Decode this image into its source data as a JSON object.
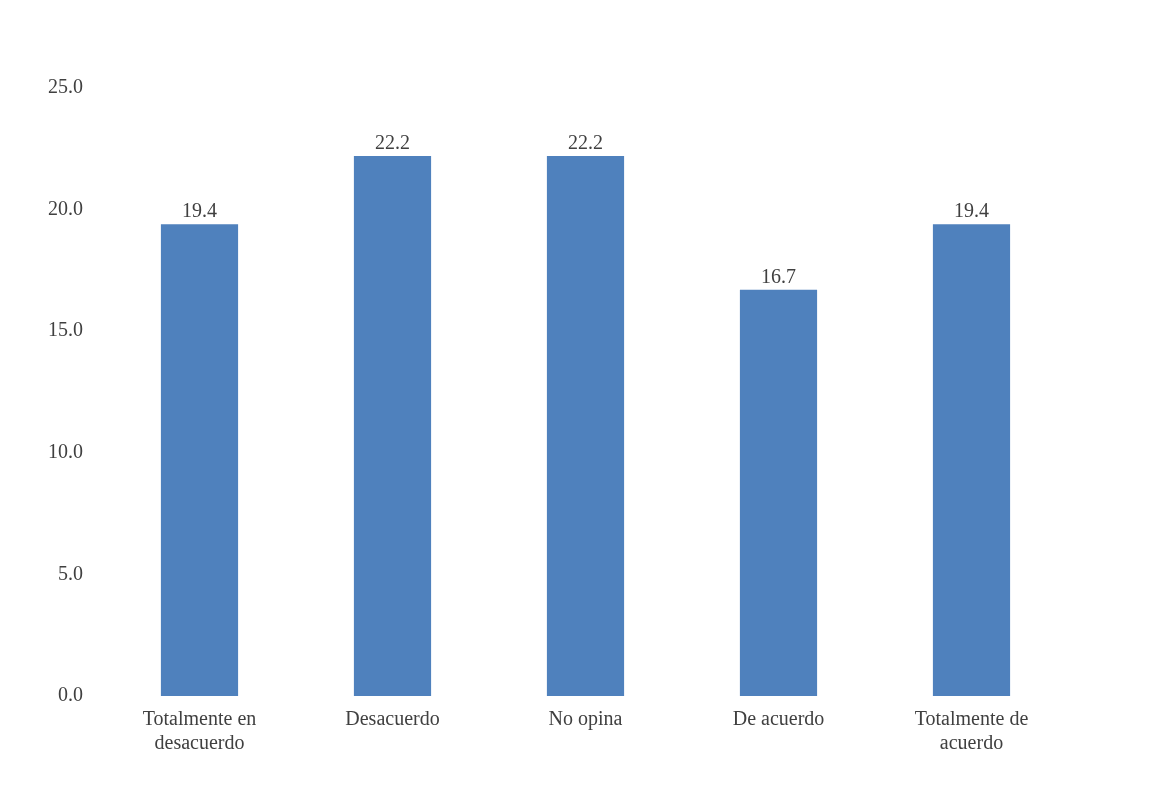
{
  "chart_data": {
    "type": "bar",
    "categories": [
      "Totalmente en desacuerdo",
      "Desacuerdo",
      "No opina",
      "De acuerdo",
      "Totalmente de acuerdo"
    ],
    "values": [
      19.4,
      22.2,
      22.2,
      16.7,
      19.4
    ],
    "color": "#4f81bd",
    "ylim": [
      0,
      25
    ],
    "yticks": [
      {
        "value": 0,
        "label": "0.0"
      },
      {
        "value": 5,
        "label": "5.0"
      },
      {
        "value": 10,
        "label": "10.0"
      },
      {
        "value": 15,
        "label": "15.0"
      },
      {
        "value": 20,
        "label": "20.0"
      },
      {
        "value": 25,
        "label": "25.0"
      }
    ],
    "grid": false,
    "legend": false,
    "data_labels": true
  }
}
